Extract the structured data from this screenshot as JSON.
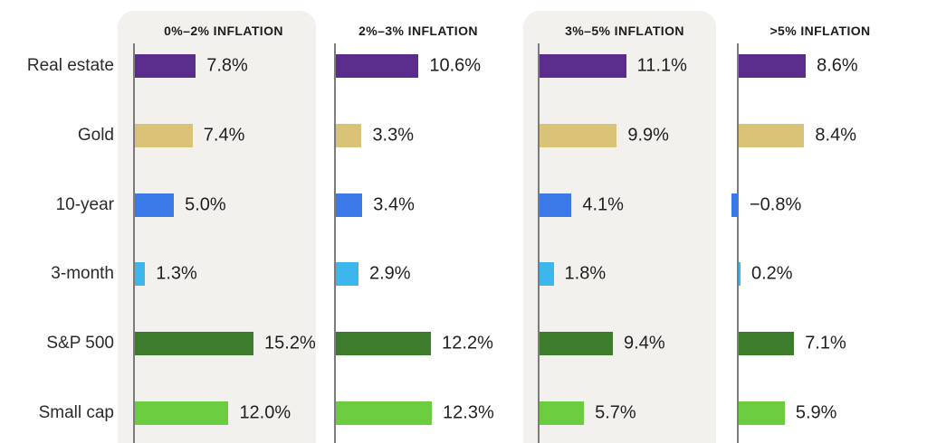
{
  "chart_data": {
    "type": "bar",
    "orientation": "horizontal",
    "unit": "%",
    "grid": false,
    "legend": "none",
    "categories": [
      "Real estate",
      "Gold",
      "10-year",
      "3-month",
      "S&P 500",
      "Small cap"
    ],
    "category_colors": {
      "Real estate": "#5a2d8c",
      "Gold": "#d9c377",
      "10-year": "#3b79e8",
      "3-month": "#3db6ed",
      "S&P 500": "#3e7c2d",
      "Small cap": "#6ccc3f"
    },
    "panels": [
      {
        "label": "0%–2% INFLATION",
        "values": [
          7.8,
          7.4,
          5.0,
          1.3,
          15.2,
          12.0
        ],
        "value_labels": [
          "7.8%",
          "7.4%",
          "5.0%",
          "1.3%",
          "15.2%",
          "12.0%"
        ],
        "has_shaded_background": true
      },
      {
        "label": "2%–3% INFLATION",
        "values": [
          10.6,
          3.3,
          3.4,
          2.9,
          12.2,
          12.3
        ],
        "value_labels": [
          "10.6%",
          "3.3%",
          "3.4%",
          "2.9%",
          "12.2%",
          "12.3%"
        ],
        "has_shaded_background": false
      },
      {
        "label": "3%–5% INFLATION",
        "values": [
          11.1,
          9.9,
          4.1,
          1.8,
          9.4,
          5.7
        ],
        "value_labels": [
          "11.1%",
          "9.9%",
          "4.1%",
          "1.8%",
          "9.4%",
          "5.7%"
        ],
        "has_shaded_background": true
      },
      {
        "label": ">5% INFLATION",
        "values": [
          8.6,
          8.4,
          -0.8,
          0.2,
          7.1,
          5.9
        ],
        "value_labels": [
          "8.6%",
          "8.4%",
          "−0.8%",
          "0.2%",
          "7.1%",
          "5.9%"
        ],
        "has_shaded_background": false
      }
    ],
    "colors": {
      "panel_background": "#f2f1ed",
      "axis_line": "#7b7b7b",
      "text": "#1f1f1f"
    }
  }
}
